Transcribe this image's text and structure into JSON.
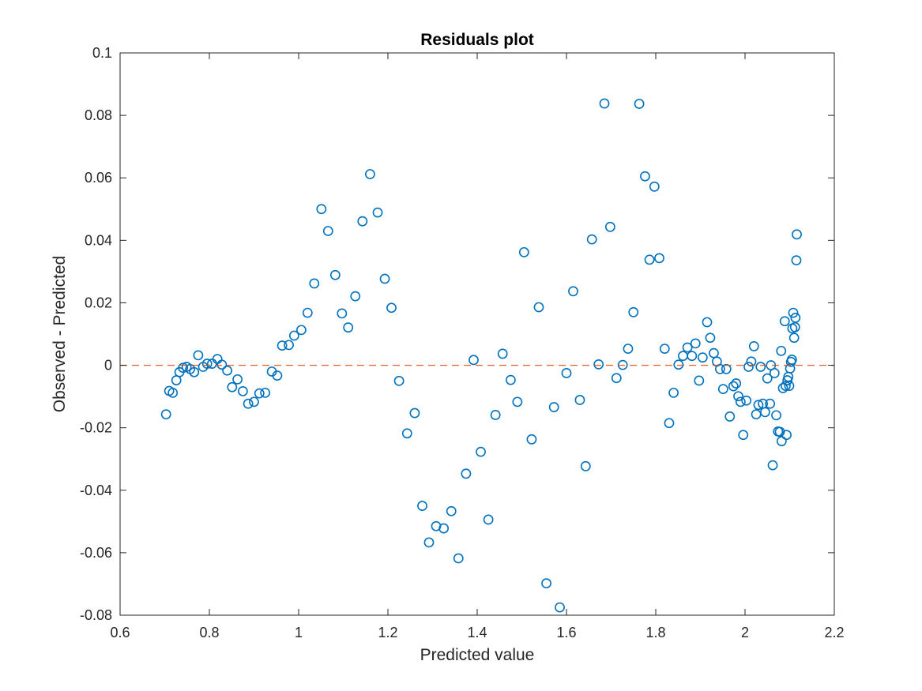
{
  "chart_data": {
    "type": "scatter",
    "title": "Residuals plot",
    "xlabel": "Predicted value",
    "ylabel": "Observed - Predicted",
    "xlim": [
      0.6,
      2.2
    ],
    "ylim": [
      -0.08,
      0.1
    ],
    "xticks": [
      "0.6",
      "0.8",
      "1",
      "1.2",
      "1.4",
      "1.6",
      "1.8",
      "2",
      "2.2"
    ],
    "yticks": [
      "-0.08",
      "-0.06",
      "-0.04",
      "-0.02",
      "0",
      "0.02",
      "0.04",
      "0.06",
      "0.08",
      "0.1"
    ],
    "grid": false,
    "marker": "circle",
    "marker_color": "#0072BD",
    "reference_line": {
      "y": 0,
      "style": "dashed",
      "color": "#D95319"
    },
    "series": [
      {
        "points": [
          [
            0.703,
            -0.0157
          ],
          [
            0.71,
            -0.0082
          ],
          [
            0.718,
            -0.0088
          ],
          [
            0.726,
            -0.0048
          ],
          [
            0.733,
            -0.0022
          ],
          [
            0.741,
            -0.0008
          ],
          [
            0.749,
            -0.0005
          ],
          [
            0.757,
            -0.0012
          ],
          [
            0.766,
            -0.0022
          ],
          [
            0.775,
            0.0032
          ],
          [
            0.786,
            -0.0005
          ],
          [
            0.795,
            0.0005
          ],
          [
            0.806,
            0.0005
          ],
          [
            0.818,
            0.002
          ],
          [
            0.828,
            0.0002
          ],
          [
            0.84,
            -0.0017
          ],
          [
            0.851,
            -0.007
          ],
          [
            0.863,
            -0.0045
          ],
          [
            0.875,
            -0.0083
          ],
          [
            0.887,
            -0.0123
          ],
          [
            0.9,
            -0.0117
          ],
          [
            0.912,
            -0.009
          ],
          [
            0.925,
            -0.0088
          ],
          [
            0.94,
            -0.002
          ],
          [
            0.952,
            -0.0033
          ],
          [
            0.963,
            0.0063
          ],
          [
            0.978,
            0.0065
          ],
          [
            0.99,
            0.0095
          ],
          [
            1.006,
            0.0113
          ],
          [
            1.02,
            0.0168
          ],
          [
            1.035,
            0.0262
          ],
          [
            1.051,
            0.05
          ],
          [
            1.066,
            0.043
          ],
          [
            1.082,
            0.0289
          ],
          [
            1.097,
            0.0166
          ],
          [
            1.111,
            0.0121
          ],
          [
            1.127,
            0.0221
          ],
          [
            1.143,
            0.0461
          ],
          [
            1.16,
            0.0612
          ],
          [
            1.177,
            0.0489
          ],
          [
            1.193,
            0.0277
          ],
          [
            1.208,
            0.0184
          ],
          [
            1.225,
            -0.005
          ],
          [
            1.243,
            -0.0218
          ],
          [
            1.26,
            -0.0153
          ],
          [
            1.277,
            -0.045
          ],
          [
            1.292,
            -0.0567
          ],
          [
            1.308,
            -0.0515
          ],
          [
            1.325,
            -0.0522
          ],
          [
            1.342,
            -0.0467
          ],
          [
            1.358,
            -0.0618
          ],
          [
            1.375,
            -0.0347
          ],
          [
            1.392,
            0.0017
          ],
          [
            1.408,
            -0.0277
          ],
          [
            1.425,
            -0.0494
          ],
          [
            1.441,
            -0.0159
          ],
          [
            1.457,
            0.0037
          ],
          [
            1.475,
            -0.0047
          ],
          [
            1.49,
            -0.0117
          ],
          [
            1.505,
            0.0362
          ],
          [
            1.522,
            -0.0237
          ],
          [
            1.538,
            0.0186
          ],
          [
            1.555,
            -0.0698
          ],
          [
            1.572,
            -0.0134
          ],
          [
            1.585,
            -0.0775
          ],
          [
            1.6,
            -0.0025
          ],
          [
            1.615,
            0.0237
          ],
          [
            1.63,
            -0.0111
          ],
          [
            1.643,
            -0.0323
          ],
          [
            1.657,
            0.0403
          ],
          [
            1.672,
            0.0003
          ],
          [
            1.685,
            0.0838
          ],
          [
            1.698,
            0.0443
          ],
          [
            1.712,
            -0.0041
          ],
          [
            1.726,
            0.0001
          ],
          [
            1.738,
            0.0053
          ],
          [
            1.75,
            0.017
          ],
          [
            1.763,
            0.0837
          ],
          [
            1.776,
            0.0605
          ],
          [
            1.786,
            0.0338
          ],
          [
            1.797,
            0.0572
          ],
          [
            1.808,
            0.0343
          ],
          [
            1.82,
            0.0053
          ],
          [
            1.83,
            -0.0185
          ],
          [
            1.84,
            -0.0088
          ],
          [
            1.851,
            0.0002
          ],
          [
            1.861,
            0.003
          ],
          [
            1.871,
            0.0057
          ],
          [
            1.881,
            0.003
          ],
          [
            1.889,
            0.007
          ],
          [
            1.897,
            -0.0049
          ],
          [
            1.905,
            0.0025
          ],
          [
            1.915,
            0.0138
          ],
          [
            1.922,
            0.0088
          ],
          [
            1.93,
            0.0039
          ],
          [
            1.937,
            0.0012
          ],
          [
            1.944,
            -0.0012
          ],
          [
            1.951,
            -0.0076
          ],
          [
            1.958,
            -0.0012
          ],
          [
            1.966,
            -0.0164
          ],
          [
            1.974,
            -0.0067
          ],
          [
            1.98,
            -0.0058
          ],
          [
            1.985,
            -0.0099
          ],
          [
            1.99,
            -0.0117
          ],
          [
            1.996,
            -0.0223
          ],
          [
            2.003,
            -0.0113
          ],
          [
            2.008,
            -0.0005
          ],
          [
            2.014,
            0.0012
          ],
          [
            2.02,
            0.0061
          ],
          [
            2.025,
            -0.0157
          ],
          [
            2.03,
            -0.0127
          ],
          [
            2.035,
            -0.0005
          ],
          [
            2.04,
            -0.0123
          ],
          [
            2.045,
            -0.015
          ],
          [
            2.05,
            -0.0042
          ],
          [
            2.056,
            -0.0123
          ],
          [
            2.058,
            0.0
          ],
          [
            2.062,
            -0.032
          ],
          [
            2.066,
            -0.0025
          ],
          [
            2.07,
            -0.016
          ],
          [
            2.074,
            -0.0212
          ],
          [
            2.078,
            -0.0213
          ],
          [
            2.081,
            0.0046
          ],
          [
            2.082,
            -0.0243
          ],
          [
            2.085,
            -0.0073
          ],
          [
            2.089,
            0.0141
          ],
          [
            2.091,
            -0.0066
          ],
          [
            2.093,
            -0.0223
          ],
          [
            2.095,
            -0.0048
          ],
          [
            2.097,
            -0.0037
          ],
          [
            2.099,
            -0.0066
          ],
          [
            2.101,
            -0.001
          ],
          [
            2.103,
            0.0011
          ],
          [
            2.105,
            0.0018
          ],
          [
            2.106,
            0.0118
          ],
          [
            2.108,
            0.0168
          ],
          [
            2.11,
            0.0088
          ],
          [
            2.112,
            0.0122
          ],
          [
            2.113,
            0.0152
          ],
          [
            2.115,
            0.0336
          ],
          [
            2.116,
            0.0419
          ]
        ]
      }
    ]
  }
}
